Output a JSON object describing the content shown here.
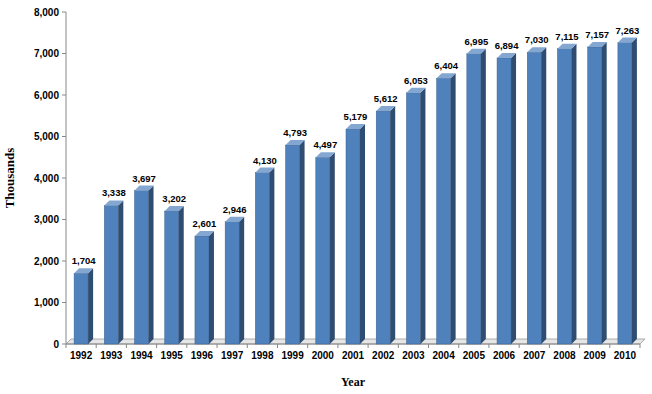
{
  "chart_data": {
    "type": "bar",
    "x_label": "Year",
    "y_label": "Thousands",
    "categories": [
      "1992",
      "1993",
      "1994",
      "1995",
      "1996",
      "1997",
      "1998",
      "1999",
      "2000",
      "2001",
      "2002",
      "2003",
      "2004",
      "2005",
      "2006",
      "2007",
      "2008",
      "2009",
      "2010"
    ],
    "values": [
      1704,
      3338,
      3697,
      3202,
      2601,
      2946,
      4130,
      4793,
      4497,
      5179,
      5612,
      6053,
      6404,
      6995,
      6894,
      7030,
      7115,
      7157,
      7263
    ],
    "value_labels": [
      "1,704",
      "3,338",
      "3,697",
      "3,202",
      "2,601",
      "2,946",
      "4,130",
      "4,793",
      "4,497",
      "5,179",
      "5,612",
      "6,053",
      "6,404",
      "6,995",
      "6,894",
      "7,030",
      "7,115",
      "7,157",
      "7,263"
    ],
    "color": "#4f81bd",
    "ylim": [
      0,
      8000
    ],
    "yticks": [
      0,
      {
        "value": 1000,
        "label": "1,000"
      },
      {
        "value": 2000,
        "label": "2,000"
      },
      {
        "value": 3000,
        "label": "3,000"
      },
      {
        "value": 4000,
        "label": "4,000"
      },
      {
        "value": 5000,
        "label": "5,000"
      },
      {
        "value": 6000,
        "label": "6,000"
      },
      {
        "value": 7000,
        "label": "7,000"
      },
      {
        "value": 8000,
        "label": "8,000"
      }
    ],
    "grid": false,
    "data_labels": true
  }
}
